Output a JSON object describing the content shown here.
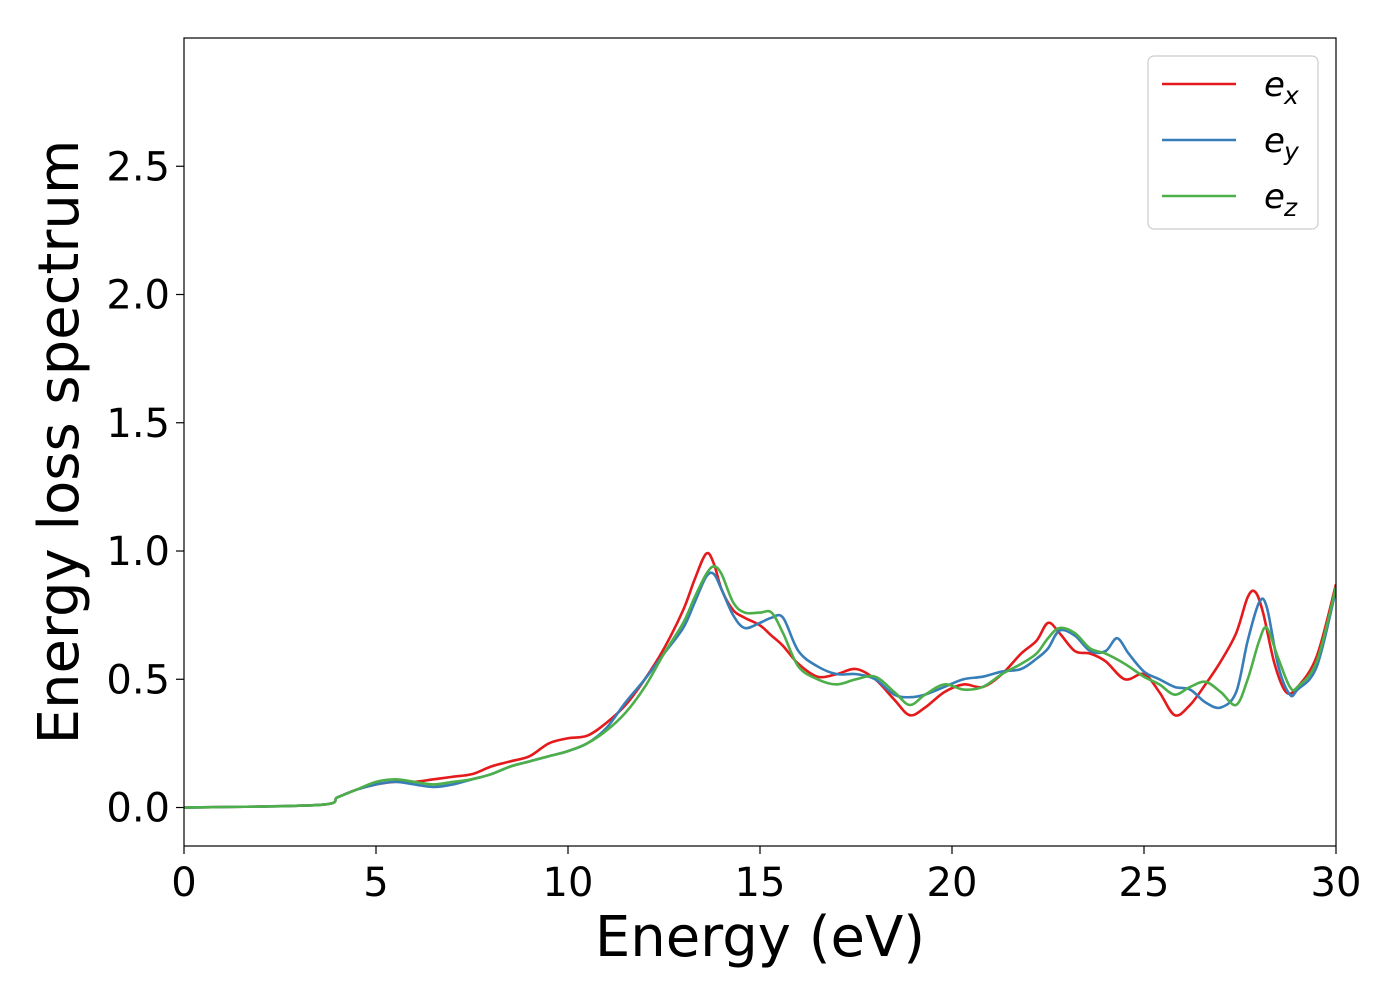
{
  "chart_data": {
    "type": "line",
    "title": "",
    "xlabel": "Energy (eV)",
    "ylabel": "Energy loss spectrum",
    "xlim": [
      0,
      30
    ],
    "ylim": [
      -0.15,
      3.0
    ],
    "xticks": [
      0,
      5,
      10,
      15,
      20,
      25,
      30
    ],
    "xtick_labels": [
      "0",
      "5",
      "10",
      "15",
      "20",
      "25",
      "30"
    ],
    "yticks": [
      0.0,
      0.5,
      1.0,
      1.5,
      2.0,
      2.5
    ],
    "ytick_labels": [
      "0.0",
      "0.5",
      "1.0",
      "1.5",
      "2.0",
      "2.5"
    ],
    "grid": false,
    "legend_position": "top-right",
    "series": [
      {
        "name": "e_x",
        "label_base": "e",
        "label_sub": "x",
        "color": "#e41a1c",
        "x": [
          0,
          3.5,
          4.0,
          4.5,
          5.0,
          5.5,
          6.0,
          6.5,
          7.0,
          7.5,
          8.0,
          8.5,
          9.0,
          9.5,
          10.0,
          10.5,
          11.0,
          11.5,
          12.0,
          12.5,
          13.0,
          13.3,
          13.6,
          13.8,
          14.0,
          14.3,
          14.6,
          15.0,
          15.3,
          15.6,
          16.0,
          16.5,
          17.0,
          17.5,
          18.0,
          18.5,
          18.9,
          19.3,
          19.8,
          20.3,
          20.8,
          21.3,
          21.8,
          22.2,
          22.5,
          22.8,
          23.2,
          23.6,
          24.0,
          24.5,
          25.0,
          25.4,
          25.8,
          26.2,
          26.6,
          27.0,
          27.4,
          27.7,
          27.9,
          28.1,
          28.4,
          28.7,
          29.0,
          29.5,
          30.0
        ],
        "y": [
          0.0,
          0.01,
          0.04,
          0.07,
          0.09,
          0.1,
          0.1,
          0.11,
          0.12,
          0.13,
          0.16,
          0.18,
          0.2,
          0.25,
          0.27,
          0.28,
          0.33,
          0.4,
          0.5,
          0.62,
          0.77,
          0.89,
          0.99,
          0.95,
          0.85,
          0.77,
          0.74,
          0.71,
          0.67,
          0.63,
          0.56,
          0.51,
          0.52,
          0.54,
          0.5,
          0.42,
          0.36,
          0.39,
          0.45,
          0.48,
          0.47,
          0.52,
          0.6,
          0.65,
          0.72,
          0.68,
          0.61,
          0.6,
          0.57,
          0.5,
          0.52,
          0.45,
          0.36,
          0.4,
          0.48,
          0.57,
          0.68,
          0.82,
          0.84,
          0.76,
          0.56,
          0.45,
          0.47,
          0.59,
          0.87
        ]
      },
      {
        "name": "e_y",
        "label_base": "e",
        "label_sub": "y",
        "color": "#377eb8",
        "x": [
          0,
          3.5,
          4.0,
          4.5,
          5.0,
          5.5,
          6.0,
          6.5,
          7.0,
          7.5,
          8.0,
          8.5,
          9.0,
          9.5,
          10.0,
          10.5,
          11.0,
          11.5,
          12.0,
          12.5,
          13.0,
          13.3,
          13.6,
          13.8,
          14.0,
          14.3,
          14.6,
          15.0,
          15.3,
          15.6,
          16.0,
          16.5,
          17.0,
          17.5,
          18.0,
          18.5,
          18.9,
          19.3,
          19.8,
          20.3,
          20.8,
          21.3,
          21.8,
          22.2,
          22.5,
          22.8,
          23.2,
          23.6,
          24.0,
          24.3,
          24.6,
          25.0,
          25.4,
          25.8,
          26.2,
          26.6,
          27.0,
          27.4,
          27.7,
          28.0,
          28.2,
          28.5,
          28.8,
          29.0,
          29.5,
          30.0
        ],
        "y": [
          0.0,
          0.01,
          0.04,
          0.07,
          0.09,
          0.1,
          0.09,
          0.08,
          0.09,
          0.11,
          0.13,
          0.16,
          0.18,
          0.2,
          0.22,
          0.25,
          0.31,
          0.41,
          0.5,
          0.6,
          0.7,
          0.8,
          0.9,
          0.91,
          0.85,
          0.75,
          0.7,
          0.72,
          0.74,
          0.74,
          0.61,
          0.55,
          0.52,
          0.52,
          0.5,
          0.44,
          0.43,
          0.44,
          0.47,
          0.5,
          0.51,
          0.53,
          0.54,
          0.58,
          0.62,
          0.69,
          0.67,
          0.61,
          0.61,
          0.66,
          0.6,
          0.53,
          0.5,
          0.47,
          0.46,
          0.41,
          0.39,
          0.45,
          0.65,
          0.8,
          0.78,
          0.55,
          0.44,
          0.46,
          0.55,
          0.85
        ]
      },
      {
        "name": "e_z",
        "label_base": "e",
        "label_sub": "z",
        "color": "#4daf4a",
        "x": [
          0,
          3.5,
          4.0,
          4.5,
          5.0,
          5.5,
          6.0,
          6.5,
          7.0,
          7.5,
          8.0,
          8.5,
          9.0,
          9.5,
          10.0,
          10.5,
          11.0,
          11.5,
          12.0,
          12.5,
          13.0,
          13.3,
          13.6,
          13.8,
          14.0,
          14.3,
          14.6,
          15.0,
          15.3,
          15.6,
          16.0,
          16.5,
          17.0,
          17.5,
          18.0,
          18.5,
          18.9,
          19.3,
          19.8,
          20.3,
          20.8,
          21.3,
          21.8,
          22.2,
          22.5,
          22.8,
          23.2,
          23.6,
          24.0,
          24.5,
          25.0,
          25.4,
          25.8,
          26.2,
          26.6,
          27.0,
          27.4,
          27.7,
          28.0,
          28.2,
          28.5,
          28.8,
          29.0,
          29.5,
          30.0
        ],
        "y": [
          0.0,
          0.01,
          0.04,
          0.07,
          0.1,
          0.11,
          0.1,
          0.09,
          0.1,
          0.11,
          0.13,
          0.16,
          0.18,
          0.2,
          0.22,
          0.25,
          0.3,
          0.37,
          0.47,
          0.6,
          0.72,
          0.82,
          0.91,
          0.94,
          0.91,
          0.8,
          0.76,
          0.76,
          0.76,
          0.68,
          0.55,
          0.5,
          0.48,
          0.5,
          0.51,
          0.45,
          0.4,
          0.44,
          0.48,
          0.46,
          0.47,
          0.52,
          0.56,
          0.6,
          0.66,
          0.7,
          0.68,
          0.62,
          0.6,
          0.56,
          0.51,
          0.48,
          0.44,
          0.47,
          0.49,
          0.45,
          0.4,
          0.5,
          0.65,
          0.7,
          0.58,
          0.47,
          0.47,
          0.57,
          0.86
        ]
      }
    ]
  }
}
